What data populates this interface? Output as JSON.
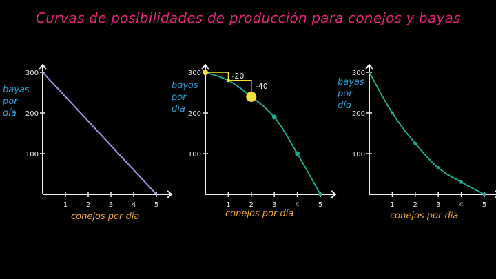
{
  "title": "Curvas de posibilidades de producción para conejos y bayas",
  "colors": {
    "background": "#000000",
    "title": "#e0257a",
    "ylabel": "#2b9fd9",
    "xlabel": "#f0a83a",
    "axes": "#f2f2f2",
    "ticks": "#e6e6e6",
    "line": "#9a9ae8",
    "curve": "#1fa88f",
    "highlight": "#f2e23a"
  },
  "charts": [
    {
      "ylabel_lines": [
        "bayas",
        "por",
        "día"
      ],
      "xlabel": "conejos por día",
      "y_ticks": [
        "300",
        "200",
        "100"
      ],
      "x_ticks": [
        "1",
        "2",
        "3",
        "4",
        "5"
      ],
      "annotations": []
    },
    {
      "ylabel_lines": [
        "bayas",
        "por",
        "día"
      ],
      "xlabel": "conejos por día",
      "y_ticks": [
        "300",
        "200",
        "100"
      ],
      "x_ticks": [
        "1",
        "2",
        "3",
        "4",
        "5"
      ],
      "annotations": [
        "-20",
        "-40"
      ]
    },
    {
      "ylabel_lines": [
        "bayas",
        "por",
        "día"
      ],
      "xlabel": "conejos por día",
      "y_ticks": [
        "300",
        "200",
        "100"
      ],
      "x_ticks": [
        "1",
        "2",
        "3",
        "4",
        "5"
      ],
      "annotations": []
    }
  ],
  "chart_data": [
    {
      "type": "line",
      "x": [
        0,
        5
      ],
      "y": [
        300,
        0
      ],
      "xlim": [
        0,
        5
      ],
      "ylim": [
        0,
        300
      ],
      "color": "#9a9ae8"
    },
    {
      "type": "line",
      "x": [
        0,
        1,
        2,
        3,
        4,
        5
      ],
      "y": [
        300,
        280,
        240,
        190,
        100,
        0
      ],
      "xlim": [
        0,
        5
      ],
      "ylim": [
        0,
        300
      ],
      "highlighted_points": [
        {
          "x": 0,
          "y": 300
        },
        {
          "x": 1,
          "y": 280
        },
        {
          "x": 2,
          "y": 240
        }
      ],
      "color": "#1fa88f"
    },
    {
      "type": "line",
      "x": [
        0,
        1,
        2,
        3,
        4,
        5
      ],
      "y": [
        300,
        200,
        125,
        65,
        30,
        0
      ],
      "xlim": [
        0,
        5
      ],
      "ylim": [
        0,
        300
      ],
      "color": "#1fa88f"
    }
  ]
}
